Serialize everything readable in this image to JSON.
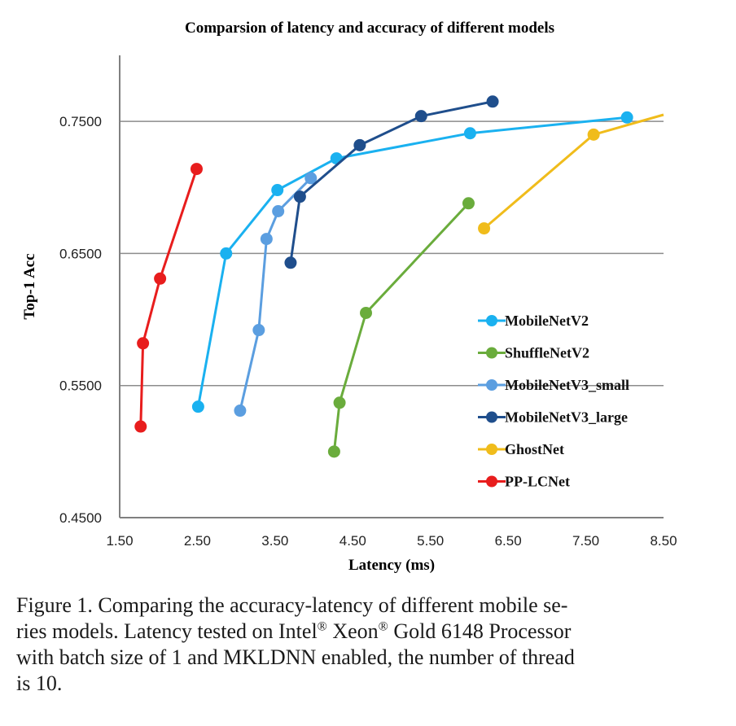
{
  "chart_data": {
    "type": "line",
    "title": "Comparsion of latency and accuracy of different models",
    "xlabel": "Latency (ms)",
    "ylabel": "Top-1 Acc",
    "xlim": [
      1.5,
      8.5
    ],
    "ylim": [
      0.45,
      0.8
    ],
    "xticks": [
      1.5,
      2.5,
      3.5,
      4.5,
      5.5,
      6.5,
      7.5,
      8.5
    ],
    "xtick_labels": [
      "1.50",
      "2.50",
      "3.50",
      "4.50",
      "5.50",
      "6.50",
      "7.50",
      "8.50"
    ],
    "yticks": [
      0.45,
      0.55,
      0.65,
      0.75
    ],
    "ytick_labels": [
      "0.4500",
      "0.5500",
      "0.6500",
      "0.7500"
    ],
    "grid": "horizontal",
    "legend_position": "right",
    "series": [
      {
        "name": "MobileNetV2",
        "color": "#1ab1f0",
        "x": [
          2.51,
          2.87,
          3.53,
          4.29,
          6.01,
          8.03
        ],
        "y": [
          0.534,
          0.65,
          0.698,
          0.722,
          0.741,
          0.753
        ]
      },
      {
        "name": "ShuffleNetV2",
        "color": "#6aac3c",
        "x": [
          4.26,
          4.33,
          4.67,
          5.99
        ],
        "y": [
          0.5,
          0.537,
          0.605,
          0.688
        ]
      },
      {
        "name": "MobileNetV3_small",
        "color": "#5b9ee0",
        "x": [
          3.05,
          3.29,
          3.39,
          3.54,
          3.96
        ],
        "y": [
          0.531,
          0.592,
          0.661,
          0.682,
          0.707
        ]
      },
      {
        "name": "MobileNetV3_large",
        "color": "#1f4e8c",
        "x": [
          3.7,
          3.82,
          4.59,
          5.38,
          6.3
        ],
        "y": [
          0.643,
          0.693,
          0.732,
          0.754,
          0.765
        ]
      },
      {
        "name": "GhostNet",
        "color": "#f0bc1b",
        "x": [
          6.19,
          7.6,
          8.5
        ],
        "y": [
          0.669,
          0.74,
          0.755
        ]
      },
      {
        "name": "PP-LCNet",
        "color": "#e81d1d",
        "x": [
          1.77,
          1.8,
          2.02,
          2.49
        ],
        "y": [
          0.519,
          0.582,
          0.631,
          0.714
        ]
      }
    ]
  },
  "caption": {
    "line1": "Figure 1. Comparing the accuracy-latency of different mobile se-",
    "line2a": "ries models. Latency tested on Intel",
    "reg1": "®",
    "line2b": " Xeon",
    "reg2": "®",
    "line2c": " Gold 6148 Processor",
    "line3": "with batch size of 1 and MKLDNN enabled, the number of thread",
    "line4": "is 10."
  }
}
